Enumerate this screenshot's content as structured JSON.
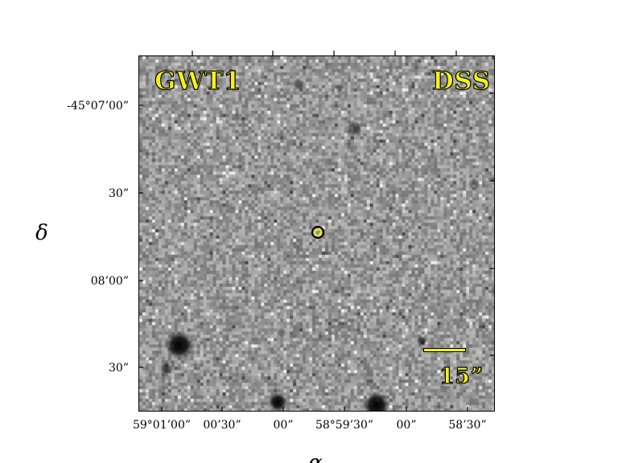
{
  "panel": {
    "object_label": "GWT1",
    "survey_label": "DSS",
    "scale_label": "15”"
  },
  "axes": {
    "y_title": "δ",
    "x_title": "α",
    "y_ticks": [
      "-45°07’00”",
      "30”",
      "08’00”",
      "30”"
    ],
    "x_ticks": [
      "59°01’00”",
      "00’30”",
      "00”",
      "58°59’30”",
      "00”",
      "58’30”"
    ]
  },
  "colors": {
    "label_fill": "#f2f21a",
    "label_outline": "#000000",
    "sky_background": "#a8a8a8"
  }
}
